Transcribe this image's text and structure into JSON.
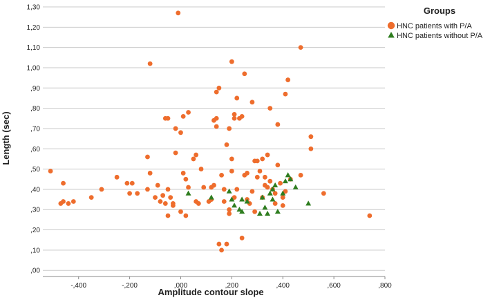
{
  "chart_data": {
    "type": "scatter",
    "xlabel": "Amplitude contour slope",
    "ylabel": "Length (sec)",
    "xlim": [
      -0.54,
      0.8
    ],
    "ylim": [
      -0.03,
      1.3
    ],
    "x_ticks": [
      -0.4,
      -0.2,
      0.0,
      0.2,
      0.4,
      0.6,
      0.8
    ],
    "x_tick_labels": [
      "-,400",
      "-,200",
      ",000",
      ",200",
      ",400",
      ",600",
      ",800"
    ],
    "y_ticks": [
      0.0,
      0.1,
      0.2,
      0.3,
      0.4,
      0.5,
      0.6,
      0.7,
      0.8,
      0.9,
      1.0,
      1.1,
      1.2,
      1.3
    ],
    "y_tick_labels": [
      ",00",
      ",10",
      ",20",
      ",30",
      ",40",
      ",50",
      ",60",
      ",70",
      ",80",
      ",90",
      "1,00",
      "1,10",
      "1,20",
      "1,30"
    ],
    "grid": "horizontal",
    "legend": {
      "title": "Groups",
      "placement": "top-right"
    },
    "series": [
      {
        "name": "HNC patients with P/A",
        "marker": "circle",
        "color": "#ee6d2d",
        "points": [
          [
            -0.51,
            0.49
          ],
          [
            -0.47,
            0.33
          ],
          [
            -0.46,
            0.43
          ],
          [
            -0.46,
            0.34
          ],
          [
            -0.44,
            0.33
          ],
          [
            -0.42,
            0.34
          ],
          [
            -0.35,
            0.36
          ],
          [
            -0.31,
            0.4
          ],
          [
            -0.25,
            0.46
          ],
          [
            -0.21,
            0.43
          ],
          [
            -0.2,
            0.38
          ],
          [
            -0.19,
            0.43
          ],
          [
            -0.17,
            0.38
          ],
          [
            -0.13,
            0.56
          ],
          [
            -0.12,
            1.02
          ],
          [
            -0.12,
            0.48
          ],
          [
            -0.13,
            0.4
          ],
          [
            -0.1,
            0.36
          ],
          [
            -0.09,
            0.42
          ],
          [
            -0.08,
            0.34
          ],
          [
            -0.07,
            0.37
          ],
          [
            -0.06,
            0.33
          ],
          [
            -0.05,
            0.4
          ],
          [
            -0.06,
            0.75
          ],
          [
            -0.05,
            0.75
          ],
          [
            -0.05,
            0.27
          ],
          [
            -0.04,
            0.36
          ],
          [
            -0.03,
            0.33
          ],
          [
            -0.03,
            0.32
          ],
          [
            -0.02,
            0.58
          ],
          [
            -0.02,
            0.7
          ],
          [
            -0.01,
            1.27
          ],
          [
            0.0,
            0.68
          ],
          [
            0.0,
            0.29
          ],
          [
            0.01,
            0.76
          ],
          [
            0.01,
            0.48
          ],
          [
            0.02,
            0.27
          ],
          [
            0.02,
            0.45
          ],
          [
            0.03,
            0.41
          ],
          [
            0.03,
            0.78
          ],
          [
            0.05,
            0.55
          ],
          [
            0.06,
            0.57
          ],
          [
            0.06,
            0.34
          ],
          [
            0.07,
            0.33
          ],
          [
            0.08,
            0.5
          ],
          [
            0.09,
            0.41
          ],
          [
            0.11,
            0.34
          ],
          [
            0.12,
            0.41
          ],
          [
            0.12,
            0.35
          ],
          [
            0.13,
            0.42
          ],
          [
            0.13,
            0.74
          ],
          [
            0.14,
            0.75
          ],
          [
            0.14,
            0.71
          ],
          [
            0.14,
            0.88
          ],
          [
            0.15,
            0.9
          ],
          [
            0.15,
            0.13
          ],
          [
            0.16,
            0.1
          ],
          [
            0.16,
            0.47
          ],
          [
            0.17,
            0.34
          ],
          [
            0.17,
            0.4
          ],
          [
            0.18,
            0.13
          ],
          [
            0.18,
            0.62
          ],
          [
            0.19,
            0.28
          ],
          [
            0.19,
            0.3
          ],
          [
            0.19,
            0.7
          ],
          [
            0.2,
            1.03
          ],
          [
            0.2,
            0.49
          ],
          [
            0.2,
            0.55
          ],
          [
            0.21,
            0.36
          ],
          [
            0.21,
            0.77
          ],
          [
            0.21,
            0.75
          ],
          [
            0.22,
            0.85
          ],
          [
            0.22,
            0.4
          ],
          [
            0.23,
            0.75
          ],
          [
            0.24,
            0.76
          ],
          [
            0.24,
            0.16
          ],
          [
            0.25,
            0.97
          ],
          [
            0.25,
            0.47
          ],
          [
            0.26,
            0.35
          ],
          [
            0.26,
            0.48
          ],
          [
            0.27,
            0.33
          ],
          [
            0.28,
            0.83
          ],
          [
            0.28,
            0.39
          ],
          [
            0.29,
            0.54
          ],
          [
            0.29,
            0.29
          ],
          [
            0.3,
            0.54
          ],
          [
            0.3,
            0.46
          ],
          [
            0.31,
            0.49
          ],
          [
            0.32,
            0.36
          ],
          [
            0.32,
            0.55
          ],
          [
            0.33,
            0.42
          ],
          [
            0.33,
            0.46
          ],
          [
            0.34,
            0.57
          ],
          [
            0.34,
            0.41
          ],
          [
            0.35,
            0.8
          ],
          [
            0.35,
            0.44
          ],
          [
            0.36,
            0.4
          ],
          [
            0.37,
            0.38
          ],
          [
            0.37,
            0.33
          ],
          [
            0.38,
            0.72
          ],
          [
            0.38,
            0.52
          ],
          [
            0.39,
            0.43
          ],
          [
            0.4,
            0.32
          ],
          [
            0.4,
            0.36
          ],
          [
            0.41,
            0.87
          ],
          [
            0.41,
            0.39
          ],
          [
            0.42,
            0.94
          ],
          [
            0.43,
            0.45
          ],
          [
            0.47,
            1.1
          ],
          [
            0.47,
            0.47
          ],
          [
            0.51,
            0.66
          ],
          [
            0.51,
            0.6
          ],
          [
            0.56,
            0.38
          ],
          [
            0.74,
            0.27
          ]
        ]
      },
      {
        "name": "HNC patients without P/A",
        "marker": "triangle",
        "color": "#2e7d1f",
        "points": [
          [
            0.03,
            0.38
          ],
          [
            0.12,
            0.36
          ],
          [
            0.19,
            0.39
          ],
          [
            0.2,
            0.35
          ],
          [
            0.21,
            0.32
          ],
          [
            0.23,
            0.3
          ],
          [
            0.24,
            0.29
          ],
          [
            0.24,
            0.35
          ],
          [
            0.26,
            0.34
          ],
          [
            0.31,
            0.28
          ],
          [
            0.32,
            0.36
          ],
          [
            0.33,
            0.31
          ],
          [
            0.34,
            0.28
          ],
          [
            0.35,
            0.38
          ],
          [
            0.36,
            0.35
          ],
          [
            0.37,
            0.42
          ],
          [
            0.38,
            0.29
          ],
          [
            0.4,
            0.38
          ],
          [
            0.41,
            0.44
          ],
          [
            0.42,
            0.47
          ],
          [
            0.43,
            0.45
          ],
          [
            0.45,
            0.41
          ],
          [
            0.5,
            0.33
          ],
          [
            0.36,
            0.4
          ]
        ]
      }
    ]
  }
}
